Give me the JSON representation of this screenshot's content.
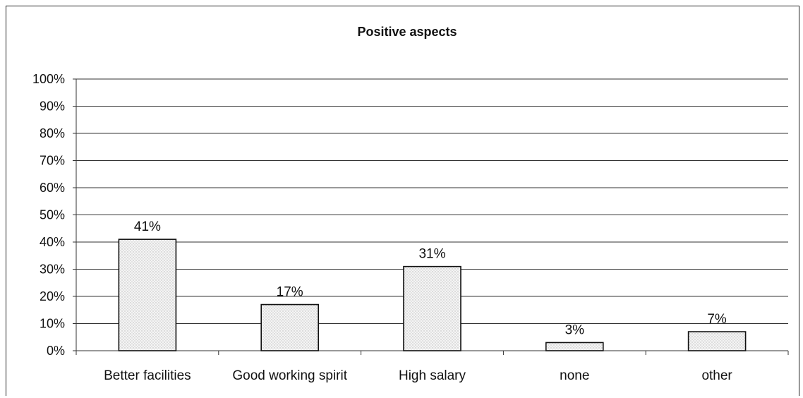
{
  "chart_data": {
    "type": "bar",
    "title": "Positive aspects",
    "categories": [
      "Better facilities",
      "Good working spirit",
      "High salary",
      "none",
      "other"
    ],
    "values": [
      41,
      17,
      31,
      3,
      7
    ],
    "value_labels": [
      "41%",
      "17%",
      "31%",
      "3%",
      "7%"
    ],
    "ylim": [
      0,
      100
    ],
    "yticks": [
      0,
      10,
      20,
      30,
      40,
      50,
      60,
      70,
      80,
      90,
      100
    ],
    "ytick_labels": [
      "0%",
      "10%",
      "20%",
      "30%",
      "40%",
      "50%",
      "60%",
      "70%",
      "80%",
      "90%",
      "100%"
    ],
    "xlabel": "",
    "ylabel": "",
    "grid": true,
    "legend": false,
    "bar_fill": "#e8e8e8",
    "bar_stroke": "#111111"
  }
}
